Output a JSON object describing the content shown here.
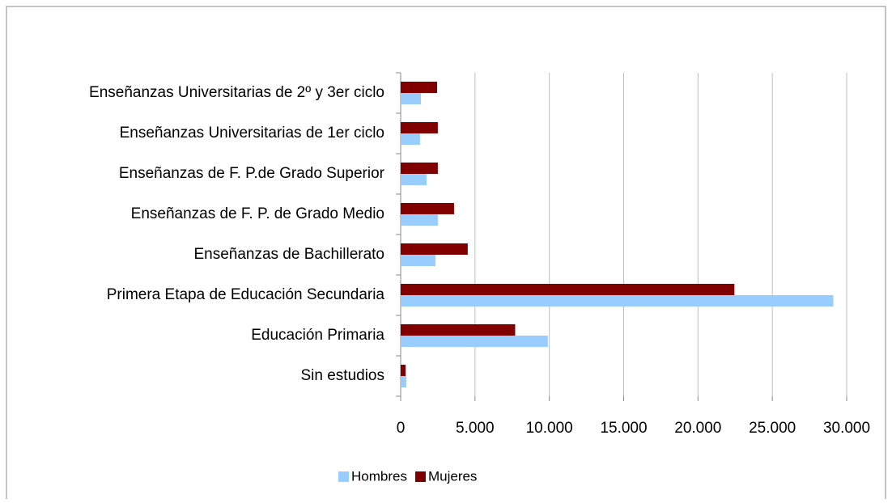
{
  "chart_data": {
    "type": "hbar",
    "categories": [
      "Sin estudios",
      "Educación Primaria",
      "Primera Etapa de Educación Secundaria",
      "Enseñanzas de Bachillerato",
      "Enseñanzas de F. P. de Grado Medio",
      "Enseñanzas de F. P.de Grado Superior",
      "Enseñanzas Universitarias de 1er ciclo",
      "Enseñanzas Universitarias de 2º y 3er ciclo"
    ],
    "series": [
      {
        "name": "Hombres",
        "color": "#99ccff",
        "values": [
          380,
          9900,
          29100,
          2340,
          2500,
          1740,
          1300,
          1360
        ]
      },
      {
        "name": "Mujeres",
        "color": "#800000",
        "values": [
          330,
          7700,
          22450,
          4510,
          3590,
          2500,
          2500,
          2450
        ]
      }
    ],
    "xlim": [
      0,
      30000
    ],
    "xticks": [
      0,
      {
        "value": 5000,
        "label": "5.000"
      },
      {
        "value": 10000,
        "label": "10.000"
      },
      {
        "value": 15000,
        "label": "15.000"
      },
      {
        "value": 20000,
        "label": "20.000"
      },
      {
        "value": 25000,
        "label": "25.000"
      },
      {
        "value": 30000,
        "label": "30.000"
      }
    ],
    "grid": true,
    "legend": "bottom"
  }
}
